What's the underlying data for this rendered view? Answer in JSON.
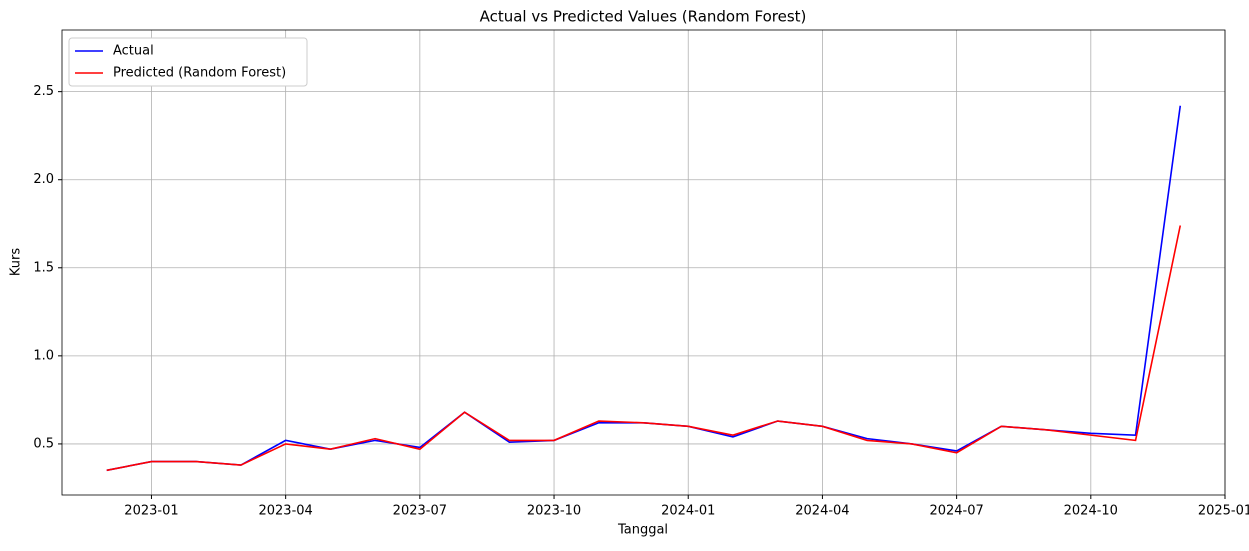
{
  "chart_data": {
    "type": "line",
    "title": "Actual vs Predicted Values (Random Forest)",
    "xlabel": "Tanggal",
    "ylabel": "Kurs",
    "x": [
      "2022-12",
      "2023-01",
      "2023-02",
      "2023-03",
      "2023-04",
      "2023-05",
      "2023-06",
      "2023-07",
      "2023-08",
      "2023-09",
      "2023-10",
      "2023-11",
      "2023-12",
      "2024-01",
      "2024-02",
      "2024-03",
      "2024-04",
      "2024-05",
      "2024-06",
      "2024-07",
      "2024-08",
      "2024-09",
      "2024-10",
      "2024-11",
      "2024-12"
    ],
    "series": [
      {
        "name": "Actual",
        "color": "#0000ff",
        "values": [
          0.35,
          0.4,
          0.4,
          0.38,
          0.52,
          0.47,
          0.52,
          0.48,
          0.68,
          0.51,
          0.52,
          0.62,
          0.62,
          0.6,
          0.54,
          0.63,
          0.6,
          0.53,
          0.5,
          0.46,
          0.6,
          0.58,
          0.56,
          0.55,
          2.42
        ]
      },
      {
        "name": "Predicted (Random Forest)",
        "color": "#ff0000",
        "values": [
          0.35,
          0.4,
          0.4,
          0.38,
          0.5,
          0.47,
          0.53,
          0.47,
          0.68,
          0.52,
          0.52,
          0.63,
          0.62,
          0.6,
          0.55,
          0.63,
          0.6,
          0.52,
          0.5,
          0.45,
          0.6,
          0.58,
          0.55,
          0.52,
          1.74
        ]
      }
    ],
    "xlim": [
      "2022-11",
      "2025-01"
    ],
    "xticks": [
      "2023-01",
      "2023-04",
      "2023-07",
      "2023-10",
      "2024-01",
      "2024-04",
      "2024-07",
      "2024-10",
      "2025-01"
    ],
    "ylim": [
      0.21,
      2.85
    ],
    "yticks": [
      0.5,
      {
        "value": 1,
        "label": "1.0"
      },
      1.5,
      {
        "value": 2,
        "label": "2.0"
      },
      2.5
    ],
    "grid": true,
    "legend": "upper left"
  }
}
